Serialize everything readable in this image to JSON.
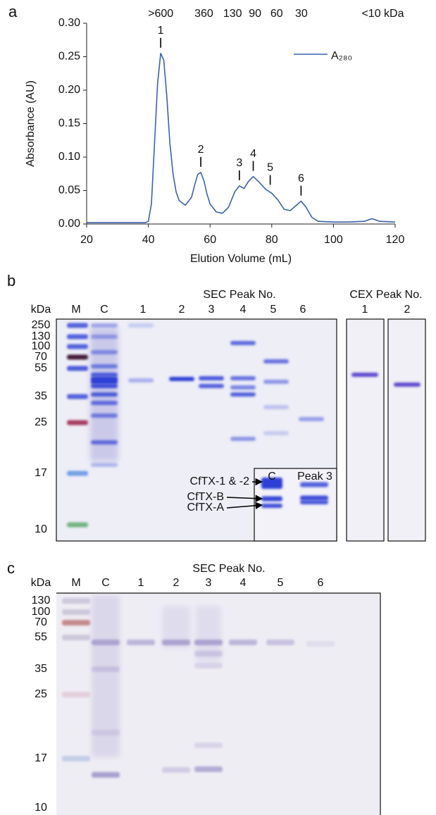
{
  "chart_data": {
    "type": "line",
    "panel_label": "a",
    "x_label": "Elution Volume (mL)",
    "y_label": "Absorbance (AU)",
    "xlim": [
      20,
      120
    ],
    "ylim": [
      0,
      0.3
    ],
    "xticks": [
      20,
      40,
      60,
      80,
      100,
      120
    ],
    "yticks": [
      {
        "value": 0,
        "label": "0.00"
      },
      0.05,
      {
        "value": 0.1,
        "label": "0.10"
      },
      0.15,
      {
        "value": 0.2,
        "label": "0.20"
      },
      0.25,
      {
        "value": 0.3,
        "label": "0.30"
      }
    ],
    "top_ticks": [
      {
        "value": 44,
        "label": ">600"
      },
      {
        "value": 58,
        "label": "360"
      },
      {
        "value": 67.3,
        "label": "130"
      },
      {
        "value": 74.6,
        "label": "90"
      },
      {
        "value": 81.6,
        "label": "60"
      },
      {
        "value": 89.6,
        "label": "30"
      },
      {
        "value": 116,
        "label": "<10 kDa"
      }
    ],
    "x": [
      20,
      30,
      39,
      40,
      41,
      42,
      43,
      44,
      45,
      46,
      47,
      48,
      49,
      50,
      52,
      54,
      55,
      56,
      57,
      58,
      59,
      60,
      62,
      64,
      66,
      68,
      69.5,
      71,
      72.5,
      74,
      76,
      78,
      80,
      82,
      84,
      86,
      88,
      89.5,
      91,
      93,
      95,
      100,
      105,
      110,
      112.5,
      115,
      120
    ],
    "series": [
      {
        "name": "A₂₈₀",
        "color": "#3a62aa",
        "values": [
          0.002,
          0.002,
          0.002,
          0.004,
          0.03,
          0.12,
          0.21,
          0.255,
          0.245,
          0.19,
          0.12,
          0.075,
          0.048,
          0.035,
          0.028,
          0.04,
          0.058,
          0.074,
          0.077,
          0.065,
          0.045,
          0.03,
          0.018,
          0.016,
          0.025,
          0.048,
          0.057,
          0.053,
          0.064,
          0.071,
          0.062,
          0.052,
          0.046,
          0.036,
          0.022,
          0.02,
          0.028,
          0.034,
          0.026,
          0.01,
          0.004,
          0.003,
          0.003,
          0.004,
          0.008,
          0.004,
          0.003
        ]
      }
    ],
    "peak_annotations": [
      {
        "x": 44,
        "y": 0.255,
        "label": "1"
      },
      {
        "x": 57,
        "y": 0.077,
        "label": "2"
      },
      {
        "x": 69.5,
        "y": 0.057,
        "label": "3"
      },
      {
        "x": 74,
        "y": 0.071,
        "label": "4"
      },
      {
        "x": 79.5,
        "y": 0.05,
        "label": "5"
      },
      {
        "x": 89.5,
        "y": 0.034,
        "label": "6"
      }
    ],
    "legend": "upper right"
  },
  "gel_b": {
    "panel_label": "b",
    "size_unit": "kDa",
    "group_label": "SEC Peak No.",
    "lanes": [
      "M",
      "C",
      "1",
      "2",
      "3",
      "4",
      "5",
      "6"
    ],
    "marker_sizes": [
      250,
      130,
      100,
      70,
      55,
      35,
      25,
      17,
      10
    ],
    "cex_label": "CEX Peak No.",
    "cex_lanes": [
      "1",
      "2"
    ],
    "inset_lanes": [
      "C",
      "Peak 3"
    ],
    "inset_bands": [
      "CfTX-1 & -2",
      "CfTX-B",
      "CfTX-A"
    ]
  },
  "gel_c": {
    "panel_label": "c",
    "size_unit": "kDa",
    "group_label": "SEC Peak No.",
    "lanes": [
      "M",
      "C",
      "1",
      "2",
      "3",
      "4",
      "5",
      "6"
    ],
    "marker_sizes": [
      130,
      100,
      70,
      55,
      35,
      25,
      17,
      10
    ]
  }
}
